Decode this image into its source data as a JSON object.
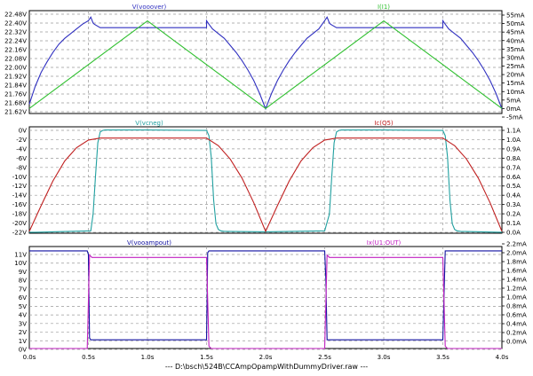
{
  "footer": "---  D:\\bsch\\524B\\CCAmpOpampWithDummyDriver.raw  ---",
  "x_ticks": [
    "0.0s",
    "0.5s",
    "1.0s",
    "1.5s",
    "2.0s",
    "2.5s",
    "3.0s",
    "3.5s",
    "4.0s"
  ],
  "chart_data": [
    {
      "type": "line",
      "x_range": [
        0,
        4
      ],
      "x_unit": "s",
      "series": [
        {
          "name": "V(vooover)",
          "axis": "left",
          "color": "#3030c0",
          "ylim": [
            22.48,
            21.62
          ],
          "x": [
            0,
            0.05,
            0.1,
            0.15,
            0.2,
            0.25,
            0.3,
            0.35,
            0.4,
            0.45,
            0.5,
            0.52,
            0.54,
            0.55,
            0.6,
            0.7,
            0.8,
            0.9,
            1.0,
            1.1,
            1.2,
            1.3,
            1.4,
            1.5,
            1.5,
            1.52,
            1.55,
            1.6,
            1.65,
            1.7,
            1.75,
            1.8,
            1.85,
            1.9,
            1.95,
            2.0,
            2.05,
            2.1,
            2.15,
            2.2,
            2.25,
            2.3,
            2.35,
            2.4,
            2.45,
            2.5,
            2.52,
            2.54,
            2.55,
            2.6,
            2.7,
            2.8,
            2.9,
            3.0,
            3.1,
            3.2,
            3.3,
            3.4,
            3.5,
            3.5,
            3.52,
            3.55,
            3.6,
            3.65,
            3.7,
            3.75,
            3.8,
            3.85,
            3.9,
            3.95,
            4.0
          ],
          "values": [
            21.7,
            21.85,
            21.97,
            22.06,
            22.14,
            22.21,
            22.26,
            22.3,
            22.34,
            22.38,
            22.41,
            22.44,
            22.39,
            22.38,
            22.35,
            22.35,
            22.35,
            22.35,
            22.35,
            22.35,
            22.35,
            22.35,
            22.35,
            22.35,
            22.41,
            22.38,
            22.34,
            22.3,
            22.26,
            22.2,
            22.14,
            22.07,
            21.99,
            21.9,
            21.79,
            21.66,
            21.79,
            21.9,
            21.99,
            22.07,
            22.14,
            22.2,
            22.26,
            22.3,
            22.34,
            22.41,
            22.44,
            22.39,
            22.38,
            22.35,
            22.35,
            22.35,
            22.35,
            22.35,
            22.35,
            22.35,
            22.35,
            22.35,
            22.35,
            22.41,
            22.38,
            22.34,
            22.3,
            22.26,
            22.2,
            22.14,
            22.07,
            21.99,
            21.9,
            21.79,
            21.66
          ]
        },
        {
          "name": "I(I1)",
          "axis": "right",
          "color": "#30c030",
          "ylim": [
            55,
            -5
          ],
          "unit": "mA",
          "x": [
            0,
            1,
            2,
            3,
            4
          ],
          "values": [
            -2,
            50,
            -2,
            50,
            -2
          ]
        }
      ],
      "left_ticks": [
        "22.48V",
        "22.40V",
        "22.32V",
        "22.24V",
        "22.16V",
        "22.08V",
        "22.00V",
        "21.92V",
        "21.84V",
        "21.76V",
        "21.68V",
        "21.62V"
      ],
      "right_ticks": [
        "55mA",
        "50mA",
        "45mA",
        "40mA",
        "35mA",
        "30mA",
        "25mA",
        "20mA",
        "15mA",
        "10mA",
        "5mA",
        "0mA",
        "-5mA"
      ]
    },
    {
      "type": "line",
      "x_range": [
        0,
        4
      ],
      "x_unit": "s",
      "series": [
        {
          "name": "V(vcneg)",
          "axis": "left",
          "color": "#20a0a0",
          "ylim": [
            0,
            -22
          ],
          "x": [
            0,
            0.05,
            0.52,
            0.54,
            0.56,
            0.58,
            0.6,
            0.62,
            0.64,
            1.0,
            1.5,
            1.52,
            1.54,
            1.56,
            1.58,
            1.6,
            1.62,
            1.65,
            2.0,
            2.5,
            2.54,
            2.56,
            2.58,
            2.6,
            2.62,
            2.64,
            3.0,
            3.5,
            3.52,
            3.54,
            3.56,
            3.58,
            3.6,
            3.62,
            3.65,
            4.0
          ],
          "values": [
            -21.8,
            -21.8,
            -21.5,
            -18,
            -10,
            -3,
            -0.7,
            -0.4,
            -0.3,
            -0.3,
            -0.4,
            -1.5,
            -6,
            -15,
            -20,
            -21.2,
            -21.5,
            -21.6,
            -21.7,
            -21.5,
            -18,
            -10,
            -3,
            -0.7,
            -0.4,
            -0.3,
            -0.3,
            -0.4,
            -1.5,
            -6,
            -15,
            -20,
            -21.2,
            -21.5,
            -21.6,
            -21.8
          ]
        },
        {
          "name": "Ic(Q5)",
          "axis": "right",
          "color": "#c02020",
          "ylim": [
            1.1,
            0
          ],
          "unit": "A",
          "x": [
            0,
            0.1,
            0.2,
            0.3,
            0.4,
            0.5,
            0.6,
            1.0,
            1.5,
            1.6,
            1.7,
            1.8,
            1.9,
            2.0,
            2.1,
            2.2,
            2.3,
            2.4,
            2.5,
            2.6,
            3.0,
            3.5,
            3.6,
            3.7,
            3.8,
            3.9,
            4.0
          ],
          "values": [
            0.02,
            0.29,
            0.55,
            0.76,
            0.9,
            0.98,
            1.0,
            1.0,
            1.0,
            0.92,
            0.78,
            0.58,
            0.32,
            0.02,
            0.29,
            0.55,
            0.76,
            0.9,
            0.98,
            1.0,
            1.0,
            1.0,
            0.92,
            0.78,
            0.58,
            0.32,
            0.02
          ]
        }
      ],
      "left_ticks": [
        "0V",
        "-2V",
        "-4V",
        "-6V",
        "-8V",
        "-10V",
        "-12V",
        "-14V",
        "-16V",
        "-18V",
        "-20V",
        "-22V"
      ],
      "right_ticks": [
        "1.1A",
        "1.0A",
        "0.9A",
        "0.8A",
        "0.7A",
        "0.6A",
        "0.5A",
        "0.4A",
        "0.3A",
        "0.2A",
        "0.1A",
        "0.0A"
      ]
    },
    {
      "type": "line",
      "x_range": [
        0,
        4
      ],
      "x_unit": "s",
      "series": [
        {
          "name": "V(vooampout)",
          "axis": "left",
          "color": "#1010a0",
          "ylim": [
            11.5,
            0
          ],
          "x": [
            0,
            0.49,
            0.5,
            0.51,
            0.52,
            1.5,
            1.51,
            1.52,
            2.5,
            2.51,
            2.52,
            3.5,
            3.51,
            3.52,
            4.0
          ],
          "values": [
            11.2,
            11.2,
            10.8,
            1.2,
            1.0,
            1.0,
            11.0,
            11.2,
            11.2,
            8.0,
            1.0,
            1.0,
            6.0,
            11.2,
            11.2
          ]
        },
        {
          "name": "Ix(U1:OUT)",
          "axis": "right",
          "color": "#c020c0",
          "ylim": [
            2.2,
            0
          ],
          "unit": "mA",
          "x": [
            0,
            0.49,
            0.51,
            0.53,
            1.5,
            1.52,
            1.54,
            2.5,
            2.52,
            2.54,
            3.5,
            3.52,
            3.54,
            4.0
          ],
          "values": [
            0.0,
            0.0,
            2.05,
            2.0,
            2.0,
            0.05,
            0.0,
            0.0,
            2.05,
            2.0,
            2.0,
            0.05,
            0.0,
            0.0
          ]
        }
      ],
      "left_ticks": [
        "11V",
        "10V",
        "9V",
        "8V",
        "7V",
        "6V",
        "5V",
        "4V",
        "3V",
        "2V",
        "1V",
        "0V"
      ],
      "right_ticks": [
        "2.2mA",
        "2.0mA",
        "1.8mA",
        "1.6mA",
        "1.4mA",
        "1.2mA",
        "1.0mA",
        "0.8mA",
        "0.6mA",
        "0.4mA",
        "0.2mA",
        "0.0mA"
      ]
    }
  ]
}
